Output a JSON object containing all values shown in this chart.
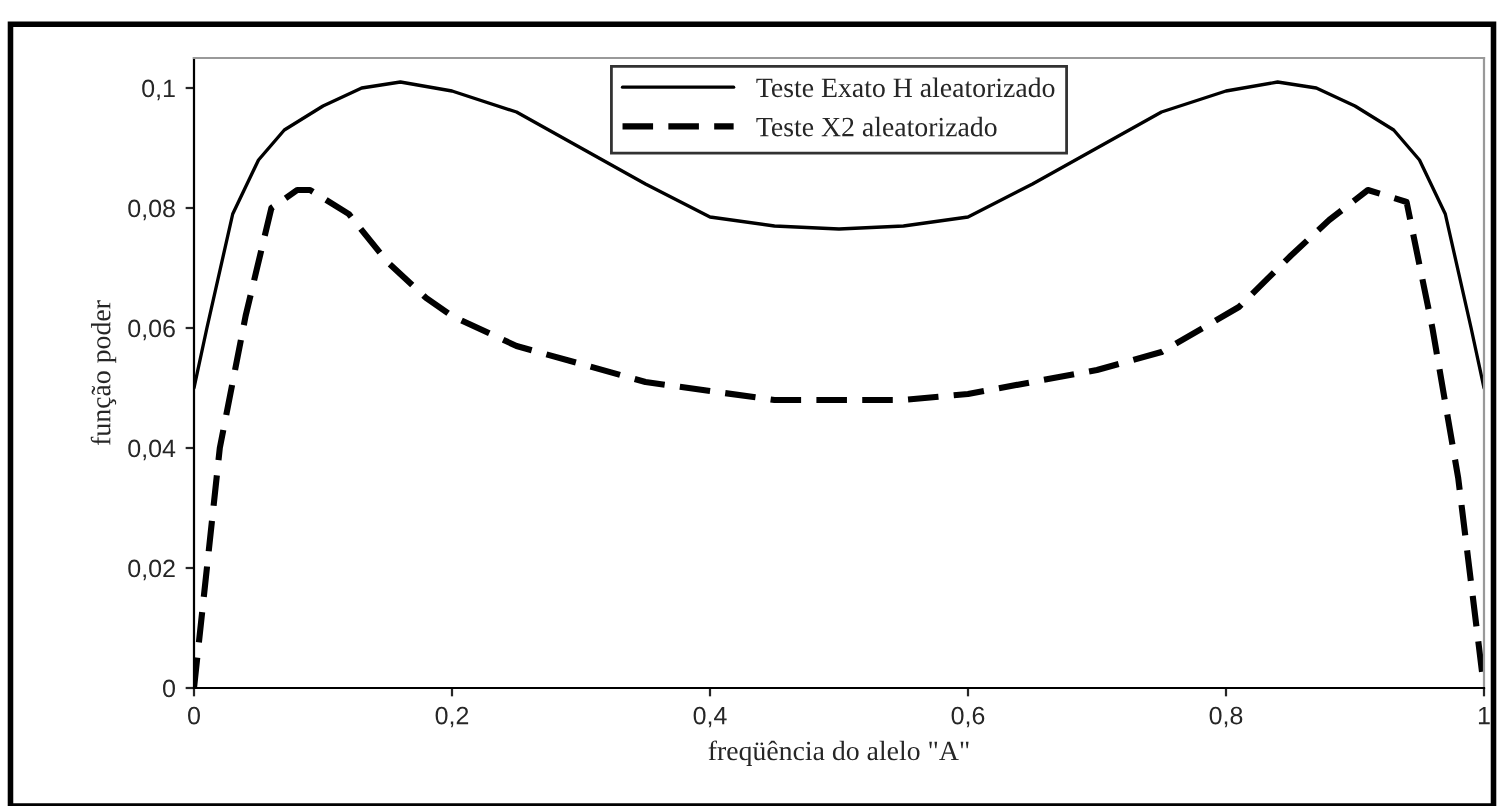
{
  "chart_data": {
    "type": "line",
    "xlabel": "freqüência do alelo \"A\"",
    "ylabel": "função poder",
    "xlim": [
      0,
      1
    ],
    "xticks": [
      0,
      {
        "value": 0.2,
        "label": "0,2"
      },
      {
        "value": 0.4,
        "label": "0,4"
      },
      {
        "value": 0.6,
        "label": "0,6"
      },
      {
        "value": 0.8,
        "label": "0,8"
      },
      1
    ],
    "ylim": [
      0,
      0.105
    ],
    "yticks": [
      0,
      {
        "value": 0.02,
        "label": "0,02"
      },
      {
        "value": 0.04,
        "label": "0,04"
      },
      {
        "value": 0.06,
        "label": "0,06"
      },
      {
        "value": 0.08,
        "label": "0,08"
      },
      {
        "value": 0.1,
        "label": "0,1"
      }
    ],
    "grid": false,
    "legend": "top",
    "marker": "none",
    "series": [
      {
        "name": "Teste Exato H aleatorizado",
        "color": "#000000",
        "line_style": "solid",
        "x": [
          0,
          0.01,
          0.03,
          0.05,
          0.07,
          0.1,
          0.13,
          0.16,
          0.2,
          0.25,
          0.3,
          0.35,
          0.4,
          0.45,
          0.5,
          0.55,
          0.6,
          0.65,
          0.7,
          0.75,
          0.8,
          0.84,
          0.87,
          0.9,
          0.93,
          0.95,
          0.97,
          0.99,
          1
        ],
        "values": [
          0.05,
          0.06,
          0.079,
          0.088,
          0.093,
          0.097,
          0.1,
          0.101,
          0.0995,
          0.096,
          0.09,
          0.084,
          0.0785,
          0.077,
          0.0765,
          0.077,
          0.0785,
          0.084,
          0.09,
          0.096,
          0.0995,
          0.101,
          0.1,
          0.097,
          0.093,
          0.088,
          0.079,
          0.06,
          0.05
        ]
      },
      {
        "name": "Teste X2 aleatorizado",
        "color": "#000000",
        "line_style": "dashed",
        "x": [
          0,
          0.01,
          0.02,
          0.04,
          0.06,
          0.08,
          0.09,
          0.12,
          0.15,
          0.18,
          0.2,
          0.25,
          0.3,
          0.35,
          0.4,
          0.45,
          0.5,
          0.55,
          0.6,
          0.65,
          0.7,
          0.75,
          0.81,
          0.85,
          0.88,
          0.91,
          0.94,
          0.96,
          0.98,
          1
        ],
        "values": [
          0,
          0.02,
          0.04,
          0.062,
          0.08,
          0.083,
          0.083,
          0.079,
          0.071,
          0.065,
          0.062,
          0.057,
          0.054,
          0.051,
          0.0495,
          0.048,
          0.048,
          0.048,
          0.049,
          0.051,
          0.053,
          0.056,
          0.0635,
          0.072,
          0.078,
          0.083,
          0.081,
          0.06,
          0.035,
          0
        ]
      }
    ]
  }
}
